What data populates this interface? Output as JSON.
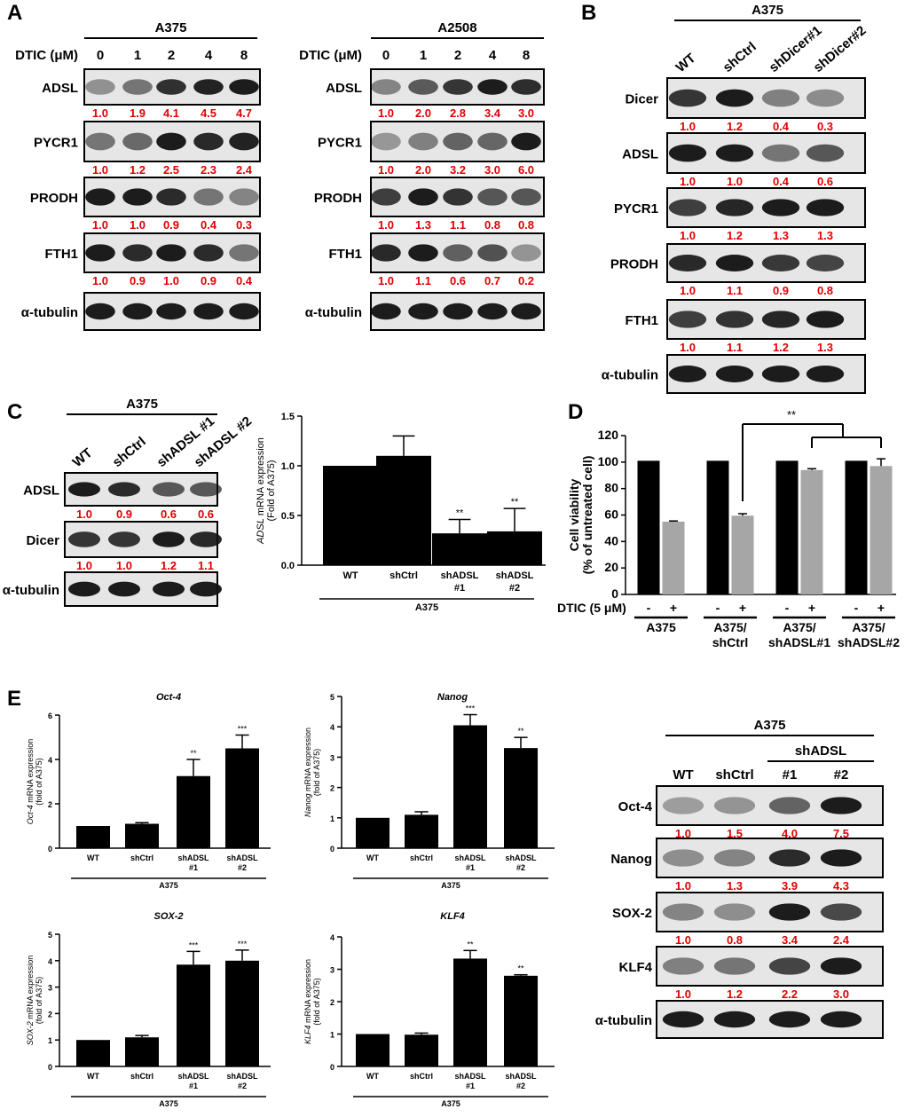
{
  "panel_labels": [
    "A",
    "B",
    "C",
    "D",
    "E"
  ],
  "blots": {
    "a375_dtic": {
      "header": "A375",
      "dose_label": "DTIC (μM)",
      "lanes": [
        "0",
        "1",
        "2",
        "4",
        "8"
      ],
      "rows": [
        {
          "label": "ADSL",
          "quant": [
            "1.0",
            "1.9",
            "4.1",
            "4.5",
            "4.7"
          ]
        },
        {
          "label": "PYCR1",
          "quant": [
            "1.0",
            "1.2",
            "2.5",
            "2.3",
            "2.4"
          ]
        },
        {
          "label": "PRODH",
          "quant": [
            "1.0",
            "1.0",
            "0.9",
            "0.4",
            "0.3"
          ]
        },
        {
          "label": "FTH1",
          "quant": [
            "1.0",
            "0.9",
            "1.0",
            "0.9",
            "0.4"
          ]
        }
      ],
      "loading": "α-tubulin"
    },
    "a2508_dtic": {
      "header": "A2508",
      "dose_label": "DTIC (μM)",
      "lanes": [
        "0",
        "1",
        "2",
        "4",
        "8"
      ],
      "rows": [
        {
          "label": "ADSL",
          "quant": [
            "1.0",
            "2.0",
            "2.8",
            "3.4",
            "3.0"
          ]
        },
        {
          "label": "PYCR1",
          "quant": [
            "1.0",
            "2.0",
            "3.2",
            "3.0",
            "6.0"
          ]
        },
        {
          "label": "PRODH",
          "quant": [
            "1.0",
            "1.3",
            "1.1",
            "0.8",
            "0.8"
          ]
        },
        {
          "label": "FTH1",
          "quant": [
            "1.0",
            "1.1",
            "0.6",
            "0.7",
            "0.2"
          ]
        }
      ],
      "loading": "α-tubulin"
    },
    "a375_dicer": {
      "header": "A375",
      "lanes": [
        "WT",
        "shCtrl",
        "shDicer#1",
        "shDicer#2"
      ],
      "rows": [
        {
          "label": "Dicer",
          "quant": [
            "1.0",
            "1.2",
            "0.4",
            "0.3"
          ]
        },
        {
          "label": "ADSL",
          "quant": [
            "1.0",
            "1.0",
            "0.4",
            "0.6"
          ]
        },
        {
          "label": "PYCR1",
          "quant": [
            "1.0",
            "1.2",
            "1.3",
            "1.3"
          ]
        },
        {
          "label": "PRODH",
          "quant": [
            "1.0",
            "1.1",
            "0.9",
            "0.8"
          ]
        },
        {
          "label": "FTH1",
          "quant": [
            "1.0",
            "1.1",
            "1.2",
            "1.3"
          ]
        }
      ],
      "loading": "α-tubulin"
    },
    "a375_adsl": {
      "header": "A375",
      "lanes": [
        "WT",
        "shCtrl",
        "shADSL #1",
        "shADSL #2"
      ],
      "rows": [
        {
          "label": "ADSL",
          "quant": [
            "1.0",
            "0.9",
            "0.6",
            "0.6"
          ]
        },
        {
          "label": "Dicer",
          "quant": [
            "1.0",
            "1.0",
            "1.2",
            "1.1"
          ]
        }
      ],
      "loading": "α-tubulin"
    },
    "a375_stem": {
      "header": "A375",
      "subheader": "shADSL",
      "lanes": [
        "WT",
        "shCtrl",
        "#1",
        "#2"
      ],
      "rows": [
        {
          "label": "Oct-4",
          "quant": [
            "1.0",
            "1.5",
            "4.0",
            "7.5"
          ]
        },
        {
          "label": "Nanog",
          "quant": [
            "1.0",
            "1.3",
            "3.9",
            "4.3"
          ]
        },
        {
          "label": "SOX-2",
          "quant": [
            "1.0",
            "0.8",
            "3.4",
            "2.4"
          ]
        },
        {
          "label": "KLF4",
          "quant": [
            "1.0",
            "1.2",
            "2.2",
            "3.0"
          ]
        }
      ],
      "loading": "α-tubulin"
    }
  },
  "chart_data": [
    {
      "id": "C-adsl-mrna",
      "type": "bar",
      "title": "",
      "ylabel_gene": "ADSL",
      "ylabel_rest": " mRNA expression",
      "ylabel_line2": "(Fold of A375)",
      "categories": [
        [
          "WT"
        ],
        [
          "shCtrl"
        ],
        [
          "shADSL",
          "#1"
        ],
        [
          "shADSL",
          "#2"
        ]
      ],
      "group_label": "A375",
      "ylim": [
        0,
        1.5
      ],
      "yticks": [
        "0.0",
        "0.5",
        "1.0",
        "1.5"
      ],
      "series": [
        {
          "name": "mRNA",
          "color": "#000000",
          "values": [
            1.0,
            1.1,
            0.32,
            0.34
          ],
          "errors": [
            0,
            0.2,
            0.14,
            0.23
          ],
          "sig": [
            "",
            "",
            "**",
            "**"
          ]
        }
      ]
    },
    {
      "id": "D-viability",
      "type": "bar",
      "title": "",
      "ylabel_gene": "",
      "ylabel_rest": "Cell viability",
      "ylabel_line2": "(% of untreated cell)",
      "treatment_label": "DTIC (5 μM)",
      "treatment_signs": [
        "-",
        "+"
      ],
      "categories": [
        [
          "A375"
        ],
        [
          "A375/",
          "shCtrl"
        ],
        [
          "A375/",
          "shADSL#1"
        ],
        [
          "A375/",
          "shADSL#2"
        ]
      ],
      "ylim": [
        0,
        120
      ],
      "yticks": [
        "0",
        "20",
        "40",
        "60",
        "80",
        "100",
        "120"
      ],
      "series": [
        {
          "name": "-",
          "color": "#000000",
          "values": [
            101,
            101,
            101,
            101
          ],
          "errors": [
            0,
            0,
            0,
            0
          ],
          "sig": [
            "",
            "",
            "",
            ""
          ]
        },
        {
          "name": "+",
          "color": "#a6a6a6",
          "values": [
            55,
            59.5,
            94,
            97
          ],
          "errors": [
            0.5,
            1.5,
            1,
            5.5
          ],
          "sig": [
            "",
            "",
            "",
            ""
          ]
        }
      ],
      "comparison_sig": "**"
    },
    {
      "id": "E-oct4",
      "type": "bar",
      "title": "Oct-4",
      "ylabel_gene": "Oct-4",
      "ylabel_rest": " mRNA expression",
      "ylabel_line2": "(fold of A375)",
      "categories": [
        [
          "WT"
        ],
        [
          "shCtrl"
        ],
        [
          "shADSL",
          "#1"
        ],
        [
          "shADSL",
          "#2"
        ]
      ],
      "group_label": "A375",
      "ylim": [
        0,
        6
      ],
      "yticks": [
        "0",
        "2",
        "4",
        "6"
      ],
      "series": [
        {
          "name": "mRNA",
          "color": "#000000",
          "values": [
            1.0,
            1.1,
            3.25,
            4.5
          ],
          "errors": [
            0,
            0.05,
            0.75,
            0.6
          ],
          "sig": [
            "",
            "",
            "**",
            "***"
          ]
        }
      ]
    },
    {
      "id": "E-nanog",
      "type": "bar",
      "title": "Nanog",
      "ylabel_gene": "Nanog",
      "ylabel_rest": " mRNA expression",
      "ylabel_line2": "(fold of A375)",
      "categories": [
        [
          "WT"
        ],
        [
          "shCtrl"
        ],
        [
          "shADSL",
          "#1"
        ],
        [
          "shADSL",
          "#2"
        ]
      ],
      "group_label": "A375",
      "ylim": [
        0,
        5
      ],
      "yticks": [
        "0",
        "1",
        "2",
        "3",
        "4",
        "5"
      ],
      "series": [
        {
          "name": "mRNA",
          "color": "#000000",
          "values": [
            1.0,
            1.1,
            4.05,
            3.3
          ],
          "errors": [
            0,
            0.1,
            0.35,
            0.35
          ],
          "sig": [
            "",
            "",
            "***",
            "**"
          ]
        }
      ]
    },
    {
      "id": "E-sox2",
      "type": "bar",
      "title": "SOX-2",
      "ylabel_gene": "SOX-2",
      "ylabel_rest": " mRNA expression",
      "ylabel_line2": "(fold of A375)",
      "categories": [
        [
          "WT"
        ],
        [
          "shCtrl"
        ],
        [
          "shADSL",
          "#1"
        ],
        [
          "shADSL",
          "#2"
        ]
      ],
      "group_label": "A375",
      "ylim": [
        0,
        5
      ],
      "yticks": [
        "0",
        "1",
        "2",
        "3",
        "4",
        "5"
      ],
      "series": [
        {
          "name": "mRNA",
          "color": "#000000",
          "values": [
            1.0,
            1.1,
            3.85,
            4.0
          ],
          "errors": [
            0,
            0.07,
            0.5,
            0.4
          ],
          "sig": [
            "",
            "",
            "***",
            "***"
          ]
        }
      ]
    },
    {
      "id": "E-klf4",
      "type": "bar",
      "title": "KLF4",
      "ylabel_gene": "KLF4",
      "ylabel_rest": " mRNA expression",
      "ylabel_line2": "(fold of A375)",
      "categories": [
        [
          "WT"
        ],
        [
          "shCtrl"
        ],
        [
          "shADSL",
          "#1"
        ],
        [
          "shADSL",
          "#2"
        ]
      ],
      "group_label": "A375",
      "ylim": [
        0,
        4
      ],
      "yticks": [
        "0",
        "1",
        "2",
        "3",
        "4"
      ],
      "series": [
        {
          "name": "mRNA",
          "color": "#000000",
          "values": [
            1.0,
            0.98,
            3.33,
            2.8
          ],
          "errors": [
            0,
            0.05,
            0.25,
            0.03
          ],
          "sig": [
            "",
            "",
            "**",
            "**"
          ]
        }
      ]
    }
  ],
  "colors": {
    "quant": "#e00000",
    "blot_bg": "#e6e6e6"
  }
}
